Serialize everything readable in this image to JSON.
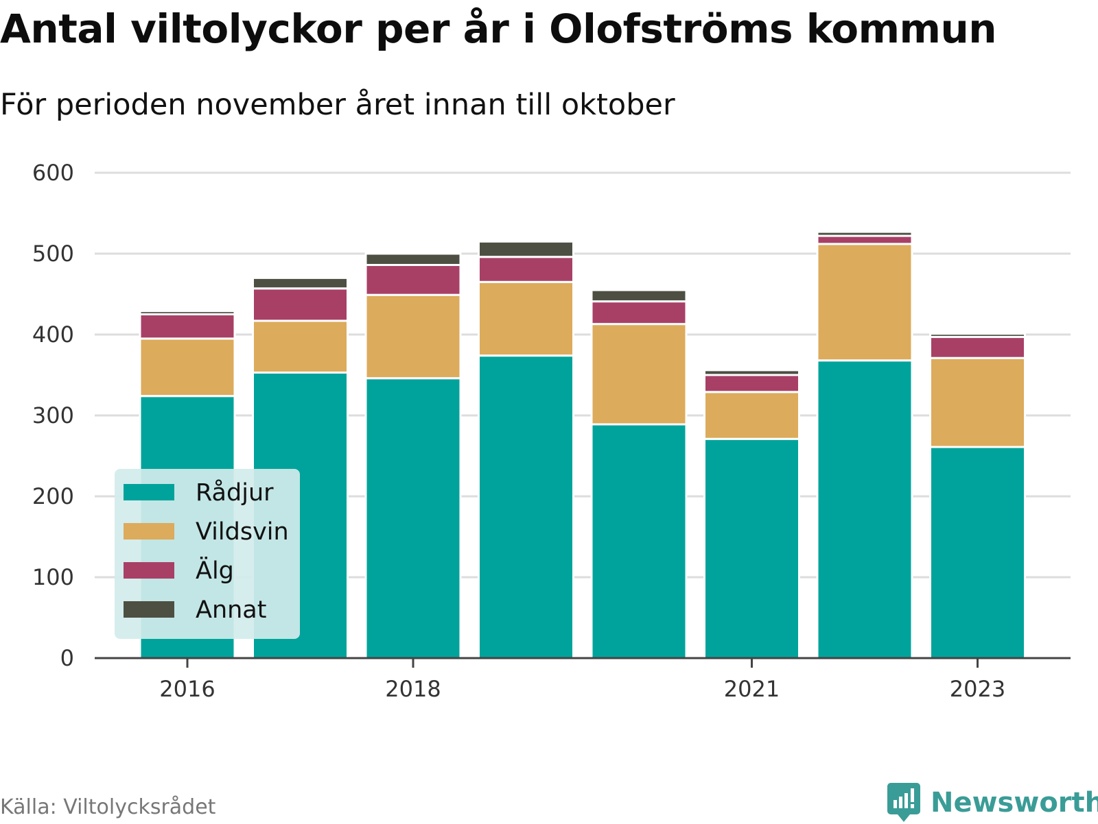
{
  "title": "Antal viltolyckor per år i Olofströms kommun",
  "subtitle": "För perioden november året innan till oktober",
  "source": "Källa: Viltolycksrådet",
  "brand": "Newsworthy",
  "colors": {
    "Rådjur": "#00a39b",
    "Vildsvin": "#dcab5c",
    "Älg": "#a84066",
    "Annat": "#4d4f42",
    "legend_bg": "#d3ecec",
    "grid": "#dddddd",
    "brand": "#3a9c97"
  },
  "chart_data": {
    "type": "bar",
    "stacked": true,
    "categories": [
      "2016",
      "2017",
      "2018",
      "2019",
      "2020",
      "2021",
      "2022",
      "2023"
    ],
    "x_tick_labels": [
      "2016",
      "2018",
      "2021",
      "2023"
    ],
    "series": [
      {
        "name": "Rådjur",
        "values": [
          324,
          353,
          346,
          374,
          289,
          271,
          368,
          261
        ]
      },
      {
        "name": "Vildsvin",
        "values": [
          71,
          64,
          103,
          91,
          124,
          58,
          144,
          110
        ]
      },
      {
        "name": "Älg",
        "values": [
          30,
          40,
          37,
          31,
          28,
          21,
          10,
          26
        ]
      },
      {
        "name": "Annat",
        "values": [
          4,
          13,
          14,
          19,
          14,
          6,
          5,
          4
        ]
      }
    ],
    "ylim": [
      0,
      600
    ],
    "yticks": [
      0,
      100,
      200,
      300,
      400,
      500,
      600
    ],
    "xlabel": "",
    "ylabel": "",
    "grid": true,
    "legend_position": "bottom-left"
  }
}
